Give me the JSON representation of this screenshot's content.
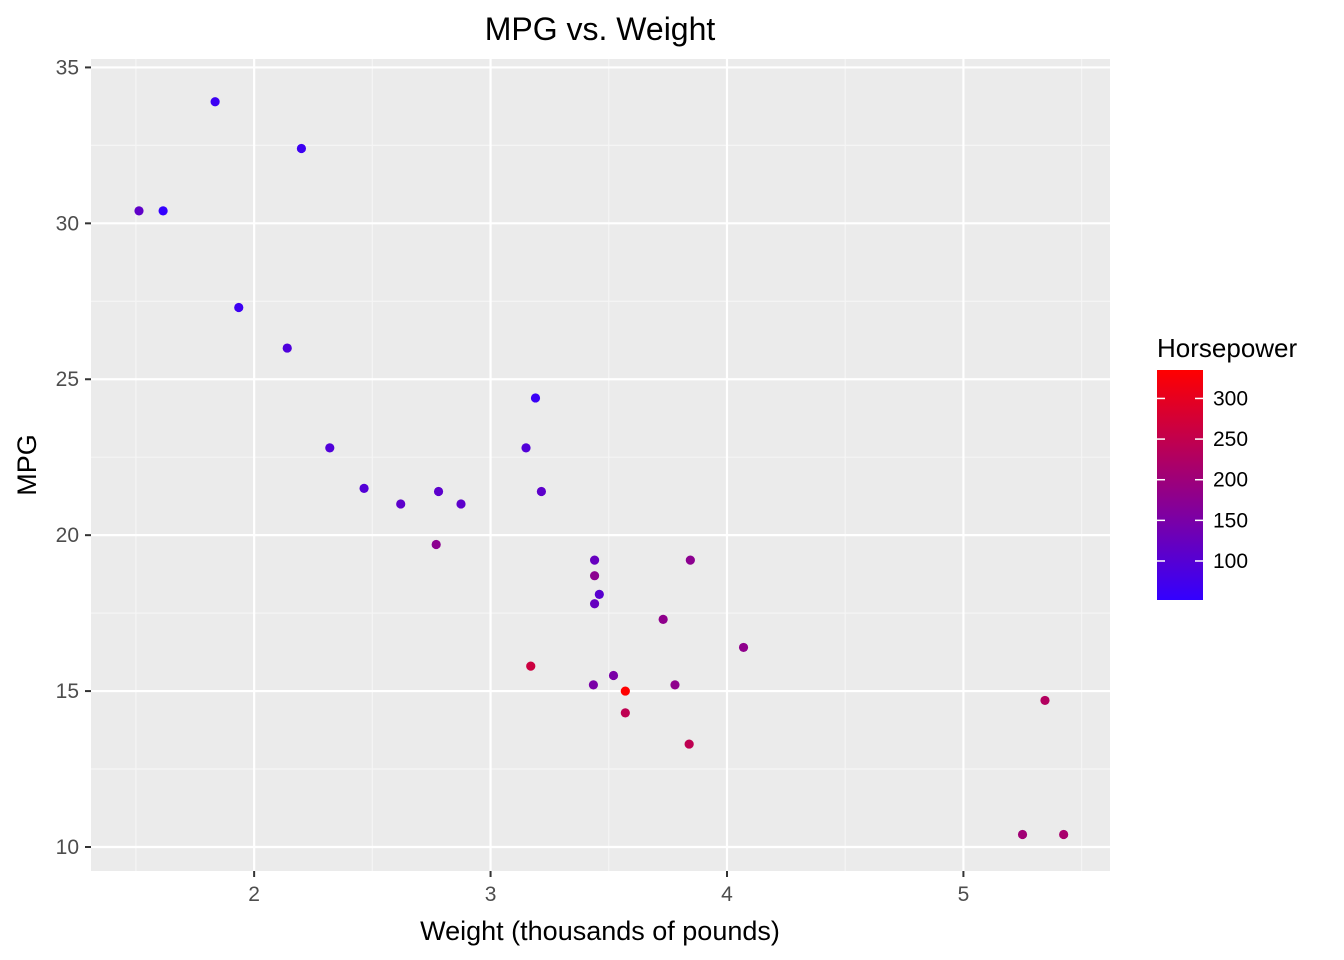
{
  "chart_data": {
    "type": "scatter",
    "title": "MPG vs. Weight",
    "xlabel": "Weight (thousands of pounds)",
    "ylabel": "MPG",
    "xlim": [
      1.31,
      5.62
    ],
    "ylim": [
      9.23,
      35.27
    ],
    "x_ticks": [
      2,
      3,
      4,
      5
    ],
    "x_tick_labels": [
      "2",
      "3",
      "4",
      "5"
    ],
    "y_ticks": [
      10,
      15,
      20,
      25,
      30,
      35
    ],
    "y_tick_labels": [
      "10",
      "15",
      "20",
      "25",
      "30",
      "35"
    ],
    "grid": true,
    "legend": {
      "title": "Horsepower",
      "position": "right",
      "type": "colorbar",
      "range": [
        52,
        335
      ],
      "ticks": [
        100,
        150,
        200,
        250,
        300
      ],
      "tick_labels": [
        "100",
        "150",
        "200",
        "250",
        "300"
      ],
      "color_low": "#3300ff",
      "color_high": "#ff0000"
    },
    "colors": {
      "panel_background": "#ebebeb",
      "grid_major": "#ffffff",
      "grid_minor": "#f5f5f5",
      "low": "#3300ff",
      "high": "#ff0000"
    },
    "points": [
      {
        "x": 2.62,
        "y": 21.0,
        "hp": 110
      },
      {
        "x": 2.875,
        "y": 21.0,
        "hp": 110
      },
      {
        "x": 2.32,
        "y": 22.8,
        "hp": 93
      },
      {
        "x": 3.215,
        "y": 21.4,
        "hp": 110
      },
      {
        "x": 3.44,
        "y": 18.7,
        "hp": 175
      },
      {
        "x": 3.46,
        "y": 18.1,
        "hp": 105
      },
      {
        "x": 3.57,
        "y": 14.3,
        "hp": 245
      },
      {
        "x": 3.19,
        "y": 24.4,
        "hp": 62
      },
      {
        "x": 3.15,
        "y": 22.8,
        "hp": 95
      },
      {
        "x": 3.44,
        "y": 19.2,
        "hp": 123
      },
      {
        "x": 3.44,
        "y": 17.8,
        "hp": 123
      },
      {
        "x": 4.07,
        "y": 16.4,
        "hp": 180
      },
      {
        "x": 3.73,
        "y": 17.3,
        "hp": 180
      },
      {
        "x": 3.78,
        "y": 15.2,
        "hp": 180
      },
      {
        "x": 5.25,
        "y": 10.4,
        "hp": 205
      },
      {
        "x": 5.424,
        "y": 10.4,
        "hp": 215
      },
      {
        "x": 5.345,
        "y": 14.7,
        "hp": 230
      },
      {
        "x": 2.2,
        "y": 32.4,
        "hp": 66
      },
      {
        "x": 1.615,
        "y": 30.4,
        "hp": 52
      },
      {
        "x": 1.835,
        "y": 33.9,
        "hp": 65
      },
      {
        "x": 2.465,
        "y": 21.5,
        "hp": 97
      },
      {
        "x": 3.52,
        "y": 15.5,
        "hp": 150
      },
      {
        "x": 3.435,
        "y": 15.2,
        "hp": 150
      },
      {
        "x": 3.84,
        "y": 13.3,
        "hp": 245
      },
      {
        "x": 3.845,
        "y": 19.2,
        "hp": 175
      },
      {
        "x": 1.935,
        "y": 27.3,
        "hp": 66
      },
      {
        "x": 2.14,
        "y": 26.0,
        "hp": 91
      },
      {
        "x": 1.513,
        "y": 30.4,
        "hp": 113
      },
      {
        "x": 3.17,
        "y": 15.8,
        "hp": 264
      },
      {
        "x": 2.77,
        "y": 19.7,
        "hp": 175
      },
      {
        "x": 3.57,
        "y": 15.0,
        "hp": 335
      },
      {
        "x": 2.78,
        "y": 21.4,
        "hp": 109
      }
    ]
  }
}
